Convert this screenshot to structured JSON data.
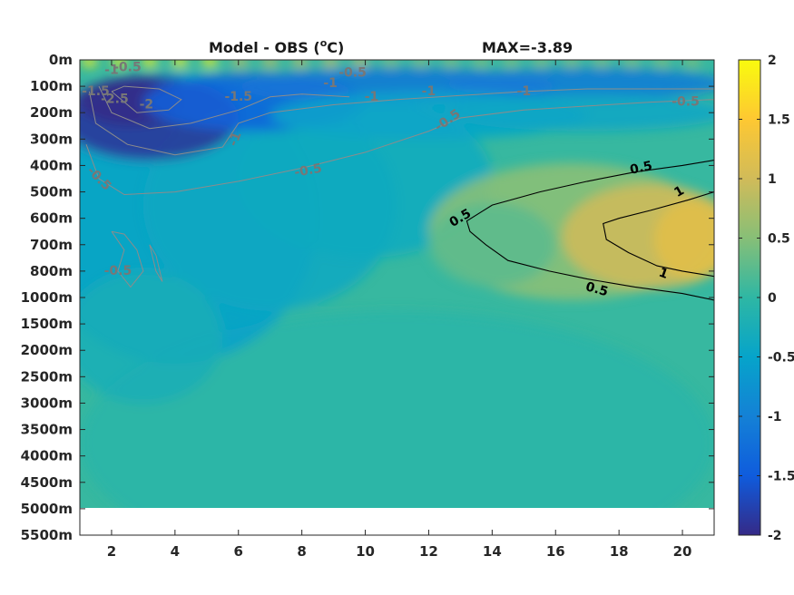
{
  "chart_data": {
    "type": "heatmap",
    "title": "Model - OBS (",
    "title_unit": "o",
    "title_suffix": "C)",
    "max_label": "MAX=-3.89",
    "x_ticks": [
      "2",
      "4",
      "6",
      "8",
      "10",
      "12",
      "14",
      "16",
      "18",
      "20"
    ],
    "x_tick_values": [
      2,
      4,
      6,
      8,
      10,
      12,
      14,
      16,
      18,
      20
    ],
    "xlim": [
      1,
      21
    ],
    "y_ticks": [
      "0m",
      "100m",
      "200m",
      "300m",
      "400m",
      "500m",
      "600m",
      "700m",
      "800m",
      "1000m",
      "1500m",
      "2000m",
      "2500m",
      "3000m",
      "3500m",
      "4000m",
      "4500m",
      "5000m",
      "5500m"
    ],
    "y_scale": "irregular depth levels",
    "data_bottom_depth": "5000m",
    "colorbar": {
      "ticks": [
        "2",
        "1.5",
        "1",
        "0.5",
        "0",
        "-0.5",
        "-1",
        "-1.5",
        "-2"
      ],
      "tick_values": [
        2,
        1.5,
        1,
        0.5,
        0,
        -0.5,
        -1,
        -1.5,
        -2
      ],
      "range": [
        -2,
        2
      ],
      "colormap": "parula"
    },
    "colormap_stops": [
      "#352a87",
      "#0f5cdd",
      "#1481d6",
      "#06a4ca",
      "#2eb7a4",
      "#87bf77",
      "#d1bb59",
      "#fec832",
      "#f9fb0e"
    ],
    "grid": false,
    "contour_labels": [
      {
        "text": "0.5",
        "x": 13.0,
        "y_index": 6.0,
        "color": "#000000",
        "rot": -30
      },
      {
        "text": "0.5",
        "x": 18.7,
        "y_index": 4.1,
        "color": "#000000",
        "rot": -12
      },
      {
        "text": "1",
        "x": 19.9,
        "y_index": 5.0,
        "color": "#000000",
        "rot": -30
      },
      {
        "text": "1",
        "x": 19.4,
        "y_index": 8.1,
        "color": "#000000",
        "rot": 20
      },
      {
        "text": "0.5",
        "x": 17.3,
        "y_index": 8.7,
        "color": "#000000",
        "rot": 15
      },
      {
        "text": "-0.5",
        "x": 8.2,
        "y_index": 4.2,
        "color": "#777777",
        "rot": -10
      },
      {
        "text": "-0.5",
        "x": 12.6,
        "y_index": 2.3,
        "color": "#777777",
        "rot": -35
      },
      {
        "text": "-0.5",
        "x": 20.1,
        "y_index": 1.6,
        "color": "#777777",
        "rot": 0
      },
      {
        "text": "-0.5",
        "x": 1.6,
        "y_index": 4.5,
        "color": "#777777",
        "rot": 45
      },
      {
        "text": "-0.5",
        "x": 2.2,
        "y_index": 8.0,
        "color": "#777777",
        "rot": 0
      },
      {
        "text": "-1",
        "x": 5.9,
        "y_index": 3.0,
        "color": "#777777",
        "rot": -70
      },
      {
        "text": "-1",
        "x": 12.0,
        "y_index": 1.2,
        "color": "#777777",
        "rot": 0
      },
      {
        "text": "-1",
        "x": 15.0,
        "y_index": 1.2,
        "color": "#777777",
        "rot": 0
      },
      {
        "text": "-1",
        "x": 10.2,
        "y_index": 1.4,
        "color": "#777777",
        "rot": 0
      },
      {
        "text": "-1",
        "x": 8.9,
        "y_index": 0.9,
        "color": "#777777",
        "rot": 0
      },
      {
        "text": "-1.5",
        "x": 6.0,
        "y_index": 1.4,
        "color": "#777777",
        "rot": 0
      },
      {
        "text": "-2",
        "x": 3.1,
        "y_index": 1.7,
        "color": "#777777",
        "rot": 0
      },
      {
        "text": "-2.5",
        "x": 2.1,
        "y_index": 1.5,
        "color": "#777777",
        "rot": 0
      },
      {
        "text": "-1.5",
        "x": 1.5,
        "y_index": 1.2,
        "color": "#777777",
        "rot": 0
      },
      {
        "text": "-1",
        "x": 2.0,
        "y_index": 0.4,
        "color": "#777777",
        "rot": 0
      },
      {
        "text": "-0.5",
        "x": 2.5,
        "y_index": 0.3,
        "color": "#777777",
        "rot": 0
      },
      {
        "text": "-0.5",
        "x": 9.6,
        "y_index": 0.5,
        "color": "#777777",
        "rot": 0
      }
    ]
  }
}
